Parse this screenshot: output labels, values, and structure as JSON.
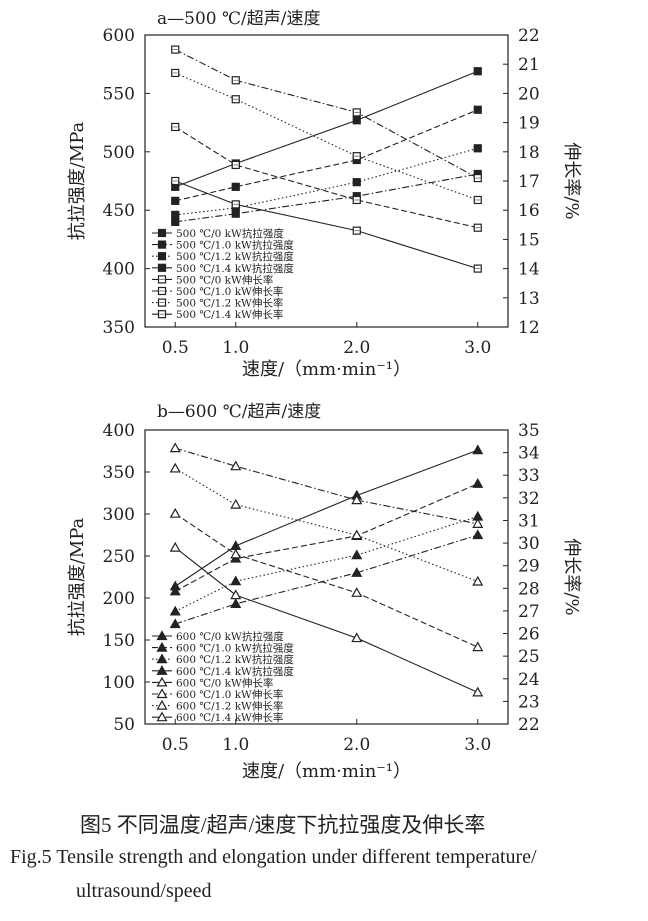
{
  "chart_data": [
    {
      "type": "line",
      "title": "a—500 ℃/超声/速度",
      "xlabel": "速度/（mm·min⁻¹）",
      "ylabel": "抗拉强度/MPa",
      "y2label": "伸长率/%",
      "x": [
        0.5,
        1.0,
        2.0,
        3.0
      ],
      "x_ticks": [
        "0.5",
        "1.0",
        "2.0",
        "3.0"
      ],
      "xlim": [
        0.25,
        3.25
      ],
      "ylim": [
        350,
        600
      ],
      "y_ticks": [
        350,
        400,
        450,
        500,
        550,
        600
      ],
      "y2lim": [
        12,
        22
      ],
      "y2_ticks": [
        12,
        13,
        14,
        15,
        16,
        17,
        18,
        19,
        20,
        21,
        22
      ],
      "grid": false,
      "legend": "bottom-left",
      "marker": "square",
      "series": [
        {
          "name": "500 ℃/0 kW抗拉强度",
          "axis": "left",
          "style": "solid",
          "filled": true,
          "values": [
            470,
            490,
            527,
            569
          ]
        },
        {
          "name": "500 ℃/1.0 kW抗拉强度",
          "axis": "left",
          "style": "dashed",
          "filled": true,
          "values": [
            458,
            470,
            493,
            536
          ]
        },
        {
          "name": "500 ℃/1.2 kW抗拉强度",
          "axis": "left",
          "style": "dotted",
          "filled": true,
          "values": [
            446,
            452,
            474,
            503
          ]
        },
        {
          "name": "500 ℃/1.4 kW抗拉强度",
          "axis": "left",
          "style": "dashdot",
          "filled": true,
          "values": [
            440,
            447,
            462,
            481
          ]
        },
        {
          "name": "500 ℃/0 kW伸长率",
          "axis": "right",
          "style": "solid",
          "filled": false,
          "values": [
            17.0,
            16.2,
            15.3,
            14.0
          ]
        },
        {
          "name": "500 ℃/1.0 kW伸长率",
          "axis": "right",
          "style": "dashed",
          "filled": false,
          "values": [
            18.85,
            17.55,
            16.35,
            15.4
          ]
        },
        {
          "name": "500 ℃/1.2 kW伸长率",
          "axis": "right",
          "style": "dotted",
          "filled": false,
          "values": [
            20.7,
            19.8,
            17.85,
            16.35
          ]
        },
        {
          "name": "500 ℃/1.4 kW伸长率",
          "axis": "right",
          "style": "dashdot",
          "filled": false,
          "values": [
            21.5,
            20.45,
            19.35,
            17.1
          ]
        }
      ]
    },
    {
      "type": "line",
      "title": "b—600 ℃/超声/速度",
      "xlabel": "速度/（mm·min⁻¹）",
      "ylabel": "抗拉强度/MPa",
      "y2label": "伸长率/%",
      "x": [
        0.5,
        1.0,
        2.0,
        3.0
      ],
      "x_ticks": [
        "0.5",
        "1.0",
        "2.0",
        "3.0"
      ],
      "xlim": [
        0.25,
        3.25
      ],
      "ylim": [
        50,
        400
      ],
      "y_ticks": [
        50,
        100,
        150,
        200,
        250,
        300,
        350,
        400
      ],
      "y2lim": [
        22,
        35
      ],
      "y2_ticks": [
        22,
        23,
        24,
        25,
        26,
        27,
        28,
        29,
        30,
        31,
        32,
        33,
        34,
        35
      ],
      "grid": false,
      "legend": "bottom-left",
      "marker": "triangle",
      "series": [
        {
          "name": "600 ℃/0 kW抗拉强度",
          "axis": "left",
          "style": "solid",
          "filled": true,
          "values": [
            214,
            262,
            322,
            376
          ]
        },
        {
          "name": "600 ℃/1.0 kW抗拉强度",
          "axis": "left",
          "style": "dashed",
          "filled": true,
          "values": [
            208,
            247,
            274,
            336
          ]
        },
        {
          "name": "600 ℃/1.2 kW抗拉强度",
          "axis": "left",
          "style": "dotted",
          "filled": true,
          "values": [
            184,
            220,
            251,
            297
          ]
        },
        {
          "name": "600 ℃/1.4 kW抗拉强度",
          "axis": "left",
          "style": "dashdot",
          "filled": true,
          "values": [
            169,
            193,
            230,
            275
          ]
        },
        {
          "name": "600 ℃/0 kW伸长率",
          "axis": "right",
          "style": "solid",
          "filled": false,
          "values": [
            29.8,
            27.7,
            25.8,
            23.4
          ]
        },
        {
          "name": "600 ℃/1.0 kW伸长率",
          "axis": "right",
          "style": "dashed",
          "filled": false,
          "values": [
            31.3,
            29.5,
            27.8,
            25.4
          ]
        },
        {
          "name": "600 ℃/1.2 kW伸长率",
          "axis": "right",
          "style": "dotted",
          "filled": false,
          "values": [
            33.3,
            31.7,
            30.35,
            28.3
          ]
        },
        {
          "name": "600 ℃/1.4 kW伸长率",
          "axis": "right",
          "style": "dashdot",
          "filled": false,
          "values": [
            34.2,
            33.4,
            31.9,
            30.85
          ]
        }
      ]
    }
  ],
  "caption": {
    "cn": "图5  不同温度/超声/速度下抗拉强度及伸长率",
    "en_line1": "Fig.5  Tensile strength and elongation under different temperature/",
    "en_line2": "ultrasound/speed"
  }
}
